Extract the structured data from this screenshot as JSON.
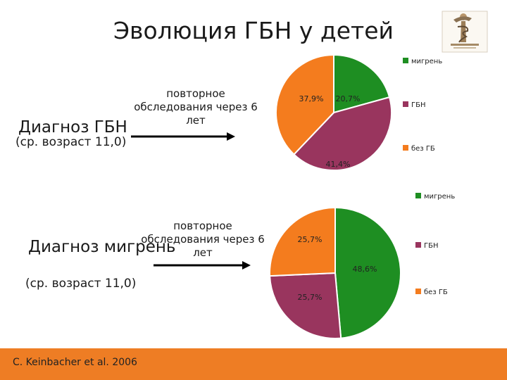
{
  "title": "Эволюция ГБН у детей",
  "colors": {
    "migraine": "#1e8e22",
    "gbn": "#99355e",
    "no_gb": "#f47c1e",
    "footer": "#ee7d24"
  },
  "rows": [
    {
      "diagnosis": "Диагноз ГБН",
      "age": "(ср. возраст 11,0)",
      "arrow_label": "повторное обследования через 6 лет"
    },
    {
      "diagnosis": "Диагноз мигрень",
      "age": "(ср. возраст 11,0)",
      "arrow_label": "повторное обследования через 6 лет"
    }
  ],
  "chart_data": [
    {
      "type": "pie",
      "categories": [
        "мигрень",
        "ГБН",
        "без ГБ"
      ],
      "values": [
        20.7,
        41.4,
        37.9
      ],
      "labels": [
        "20,7%",
        "41,4%",
        "37,9%"
      ],
      "legend": [
        "мигрень",
        "ГБН",
        "без ГБ"
      ],
      "legend_position": "right"
    },
    {
      "type": "pie",
      "categories": [
        "мигрень",
        "ГБН",
        "без ГБ"
      ],
      "values": [
        48.6,
        25.7,
        25.7
      ],
      "labels": [
        "48,6%",
        "25,7%",
        "25,7%"
      ],
      "legend": [
        "мигрень",
        "ГБН",
        "без ГБ"
      ],
      "legend_position": "right"
    }
  ],
  "footer": {
    "citation": "C. Keinbacher et al. 2006"
  },
  "logo": {
    "icon": "medical-emblem-icon"
  }
}
